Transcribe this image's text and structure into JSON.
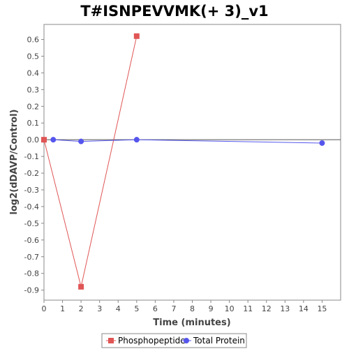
{
  "chart_data": {
    "type": "line",
    "title": "T#ISNPEVVMK(+ 3)_v1",
    "xlabel": "Time (minutes)",
    "ylabel": "log2(dDAVP/Control)",
    "xlim": [
      0,
      16
    ],
    "ylim": [
      -0.96,
      0.69
    ],
    "xticks": [
      "0",
      "1",
      "2",
      "3",
      "4",
      "5",
      "6",
      "7",
      "8",
      "9",
      "10",
      "11",
      "12",
      "13",
      "14",
      "15"
    ],
    "yticks": [
      "0.6",
      "0.5",
      "0.4",
      "0.3",
      "0.2",
      "0.1",
      "0.0",
      "-0.1",
      "-0.2",
      "-0.3",
      "-0.4",
      "-0.5",
      "-0.6",
      "-0.7",
      "-0.8",
      "-0.9"
    ],
    "legend_position": "bottom",
    "series": [
      {
        "name": "Phosphopeptide",
        "color": "#e05555",
        "marker": "square",
        "points": [
          [
            0,
            0.0
          ],
          [
            2,
            -0.88
          ],
          [
            5,
            0.62
          ]
        ]
      },
      {
        "name": "Total Protein",
        "color": "#5555ee",
        "marker": "circle",
        "points": [
          [
            0.5,
            0.0
          ],
          [
            2,
            -0.01
          ],
          [
            5,
            0.0
          ],
          [
            15,
            -0.02
          ]
        ]
      }
    ]
  }
}
